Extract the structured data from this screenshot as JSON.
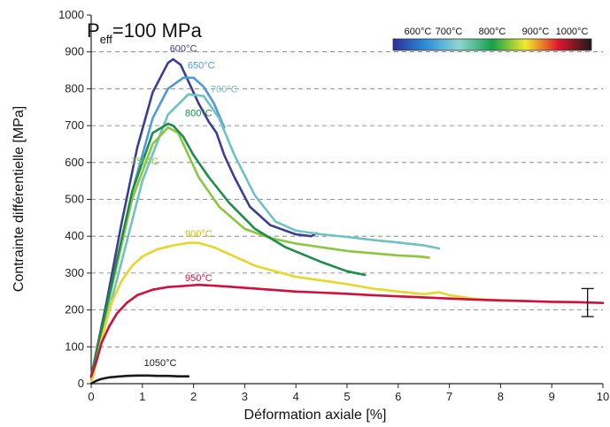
{
  "chart_data": {
    "type": "line",
    "xlabel": "Déformation axiale [%]",
    "ylabel": "Contrainte différentielle [MPa]",
    "xlim": [
      0,
      10
    ],
    "ylim": [
      0,
      1000
    ],
    "xticks": [
      "0",
      "1",
      "2",
      "3",
      "4",
      "5",
      "6",
      "7",
      "8",
      "9",
      "10"
    ],
    "yticks": [
      "0",
      "100",
      "200",
      "300",
      "400",
      "500",
      "600",
      "700",
      "800",
      "900",
      "1000"
    ],
    "grid": "horizontal-dashed",
    "annotation": {
      "p": "P",
      "sub": "eff",
      "rest": "=100 MPa"
    },
    "colorbar": {
      "labels": [
        "600°C",
        "700°C",
        "800°C",
        "900°C",
        "1000°C"
      ],
      "colors": [
        "#2b2f9a",
        "#2f8fd8",
        "#8fd6d0",
        "#14a04a",
        "#f2ea2a",
        "#e0172d",
        "#1a1a1a"
      ]
    },
    "error_bar": {
      "x": 9.7,
      "low": 182,
      "high": 258
    },
    "series": [
      {
        "label": "600°C",
        "color": "#3d3d93",
        "label_at": [
          1.8,
          900
        ],
        "x": [
          0.0,
          0.3,
          0.6,
          0.9,
          1.2,
          1.5,
          1.6,
          1.75,
          1.9,
          2.1,
          2.3,
          2.45,
          2.6,
          2.8,
          3.1,
          3.5,
          4.0,
          4.3,
          4.4
        ],
        "y": [
          20,
          220,
          440,
          640,
          790,
          870,
          880,
          865,
          820,
          760,
          710,
          680,
          620,
          560,
          480,
          430,
          405,
          400,
          408
        ]
      },
      {
        "label": "650°C",
        "color": "#4c9ad8",
        "label_at": [
          2.15,
          855
        ],
        "x": [
          0.0,
          0.4,
          0.8,
          1.2,
          1.5,
          1.8,
          2.0,
          2.2,
          2.4,
          2.6
        ],
        "y": [
          20,
          260,
          520,
          720,
          800,
          830,
          830,
          805,
          760,
          695
        ]
      },
      {
        "label": "700°C",
        "color": "#6ec3c0",
        "label_at": [
          2.6,
          790
        ],
        "x": [
          0.0,
          0.5,
          1.0,
          1.5,
          1.9,
          2.2,
          2.5,
          2.8,
          3.2,
          3.6,
          4.0,
          4.5,
          5.0,
          5.5,
          6.0,
          6.5,
          6.8
        ],
        "y": [
          20,
          280,
          550,
          730,
          785,
          780,
          720,
          620,
          510,
          440,
          415,
          405,
          398,
          390,
          383,
          375,
          367
        ]
      },
      {
        "label": "750°C",
        "color": "#8cc63f",
        "label_at": [
          1.05,
          595
        ],
        "x": [
          0.0,
          0.4,
          0.8,
          1.2,
          1.5,
          1.7,
          1.9,
          2.1,
          2.5,
          3.0,
          3.5,
          4.0,
          5.0,
          6.0,
          6.4,
          6.6
        ],
        "y": [
          20,
          260,
          500,
          650,
          695,
          680,
          620,
          560,
          480,
          420,
          395,
          380,
          360,
          348,
          345,
          342
        ]
      },
      {
        "label": "800°C",
        "color": "#1e8c4a",
        "label_at": [
          2.1,
          725
        ],
        "x": [
          0.0,
          0.4,
          0.8,
          1.2,
          1.5,
          1.6,
          1.8,
          2.0,
          2.3,
          2.7,
          3.2,
          3.8,
          4.5,
          5.0,
          5.35
        ],
        "y": [
          20,
          270,
          520,
          680,
          705,
          700,
          670,
          620,
          560,
          490,
          420,
          370,
          330,
          305,
          295
        ]
      },
      {
        "label": "900°C",
        "color": "#e8d62a",
        "label_at": [
          2.1,
          398
        ],
        "x": [
          0.0,
          0.2,
          0.4,
          0.6,
          0.8,
          1.0,
          1.3,
          1.6,
          1.9,
          2.1,
          2.4,
          2.8,
          3.2,
          4.0,
          4.5,
          5.0,
          5.5,
          6.0,
          6.5,
          6.8,
          7.0,
          7.5,
          8.0,
          8.5
        ],
        "y": [
          0,
          120,
          220,
          280,
          320,
          345,
          365,
          375,
          382,
          382,
          370,
          345,
          320,
          290,
          280,
          270,
          258,
          250,
          243,
          248,
          240,
          230,
          226,
          224
        ]
      },
      {
        "label": "950°C",
        "color": "#d0103c",
        "label_at": [
          2.1,
          278
        ],
        "x": [
          0.0,
          0.1,
          0.2,
          0.35,
          0.5,
          0.7,
          0.9,
          1.2,
          1.5,
          1.8,
          2.1,
          2.5,
          3.0,
          3.5,
          4.0,
          4.5,
          5.0,
          5.5,
          6.0,
          6.5,
          7.0,
          7.5,
          8.0,
          8.5,
          9.0,
          9.5,
          10.0
        ],
        "y": [
          20,
          60,
          110,
          155,
          190,
          220,
          240,
          255,
          262,
          265,
          268,
          265,
          260,
          255,
          250,
          247,
          244,
          240,
          237,
          234,
          231,
          228,
          226,
          224,
          222,
          221,
          219
        ]
      },
      {
        "label": "1050°C",
        "color": "#1a1a1a",
        "label_at": [
          1.35,
          48
        ],
        "x": [
          0.0,
          0.1,
          0.2,
          0.35,
          0.5,
          0.7,
          0.9,
          1.1,
          1.3,
          1.5,
          1.7,
          1.9
        ],
        "y": [
          0,
          8,
          13,
          17,
          19,
          21,
          22,
          22,
          21,
          21,
          20,
          20
        ]
      }
    ]
  }
}
